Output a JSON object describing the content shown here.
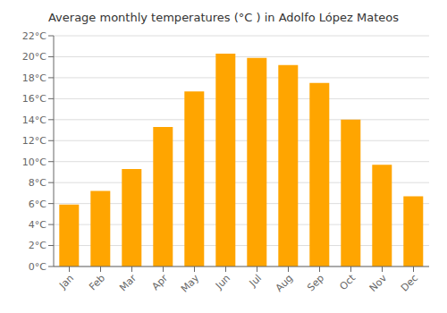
{
  "chart_data": {
    "type": "bar",
    "title": "Average monthly temperatures (°C ) in Adolfo López Mateos",
    "categories": [
      "Jan",
      "Feb",
      "Mar",
      "Apr",
      "May",
      "Jun",
      "Jul",
      "Aug",
      "Sep",
      "Oct",
      "Nov",
      "Dec"
    ],
    "values": [
      5.9,
      7.2,
      9.3,
      13.3,
      16.7,
      20.3,
      19.9,
      19.2,
      17.5,
      14.0,
      9.7,
      6.7
    ],
    "color": "#FFA500",
    "ylim": [
      0,
      22
    ],
    "yticks": [
      {
        "value": 0,
        "label": "0°C"
      },
      {
        "value": 2,
        "label": "2°C"
      },
      {
        "value": 4,
        "label": "4°C"
      },
      {
        "value": 6,
        "label": "6°C"
      },
      {
        "value": 8,
        "label": "8°C"
      },
      {
        "value": 10,
        "label": "10°C"
      },
      {
        "value": 12,
        "label": "12°C"
      },
      {
        "value": 14,
        "label": "14°C"
      },
      {
        "value": 16,
        "label": "16°C"
      },
      {
        "value": 18,
        "label": "18°C"
      },
      {
        "value": 20,
        "label": "20°C"
      },
      {
        "value": 22,
        "label": "22°C"
      }
    ],
    "grid": true
  }
}
